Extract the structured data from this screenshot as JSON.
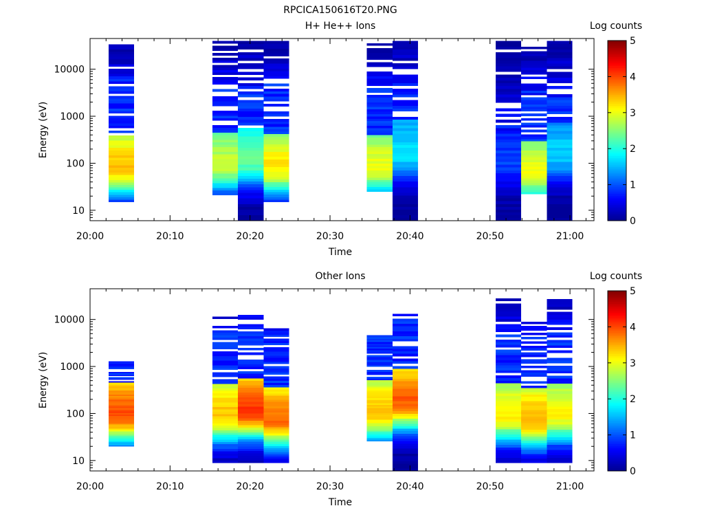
{
  "figure_title": "RPCICA150616T20.PNG",
  "colors": {
    "colormap": [
      "#00008f",
      "#0000ff",
      "#00ffff",
      "#ffff00",
      "#ff0000",
      "#800000"
    ]
  },
  "chart_data": [
    {
      "type": "heatmap",
      "title": "H+ He++ Ions",
      "xlabel": "Time",
      "ylabel": "Energy (eV)",
      "colorbar_label": "Log counts",
      "colorbar_ticks": [
        "0",
        "1",
        "2",
        "3",
        "4",
        "5"
      ],
      "colorbar_range": [
        0,
        5
      ],
      "x_range_min": [
        0,
        63
      ],
      "x_ticks": [
        "20:00",
        "20:10",
        "20:20",
        "20:30",
        "20:40",
        "20:50",
        "21:00"
      ],
      "x_tick_min": [
        0,
        10,
        20,
        30,
        40,
        50,
        60
      ],
      "y_scale": "log",
      "y_range_eV": [
        6,
        45000
      ],
      "y_ticks": [
        "10",
        "100",
        "1000",
        "10000"
      ],
      "y_tick_values": [
        10,
        100,
        1000,
        10000
      ],
      "columns": [
        {
          "t0": 2.3,
          "t1": 5.5,
          "e_min": 15,
          "e_max": 34000,
          "peak_e": 75,
          "peak": 3.4
        },
        {
          "t0": 15.3,
          "t1": 18.5,
          "e_min": 21,
          "e_max": 40000,
          "peak_e": 90,
          "peak": 2.8
        },
        {
          "t0": 18.5,
          "t1": 21.7,
          "e_min": 6,
          "e_max": 40000,
          "peak_e": 110,
          "peak": 2.3
        },
        {
          "t0": 21.7,
          "t1": 24.9,
          "e_min": 15,
          "e_max": 40000,
          "peak_e": 80,
          "peak": 3.2
        },
        {
          "t0": 34.6,
          "t1": 37.8,
          "e_min": 25,
          "e_max": 40000,
          "peak_e": 80,
          "peak": 3.0
        },
        {
          "t0": 37.8,
          "t1": 41.0,
          "e_min": 6,
          "e_max": 40000,
          "peak_e": 160,
          "peak": 1.7
        },
        {
          "t0": 50.7,
          "t1": 53.9,
          "e_min": 6,
          "e_max": 40000,
          "peak_e": 100,
          "peak": 0.9
        },
        {
          "t0": 53.9,
          "t1": 57.1,
          "e_min": 22,
          "e_max": 30000,
          "peak_e": 60,
          "peak": 3.0
        },
        {
          "t0": 57.1,
          "t1": 60.3,
          "e_min": 6,
          "e_max": 40000,
          "peak_e": 150,
          "peak": 1.6
        }
      ]
    },
    {
      "type": "heatmap",
      "title": "Other Ions",
      "xlabel": "Time",
      "ylabel": "Energy (eV)",
      "colorbar_label": "Log counts",
      "colorbar_ticks": [
        "0",
        "1",
        "2",
        "3",
        "4",
        "5"
      ],
      "colorbar_range": [
        0,
        5
      ],
      "x_range_min": [
        0,
        63
      ],
      "x_ticks": [
        "20:00",
        "20:10",
        "20:20",
        "20:30",
        "20:40",
        "20:50",
        "21:00"
      ],
      "x_tick_min": [
        0,
        10,
        20,
        30,
        40,
        50,
        60
      ],
      "y_scale": "log",
      "y_range_eV": [
        6,
        45000
      ],
      "y_ticks": [
        "10",
        "100",
        "1000",
        "10000"
      ],
      "y_tick_values": [
        10,
        100,
        1000,
        10000
      ],
      "columns": [
        {
          "t0": 2.3,
          "t1": 5.5,
          "e_min": 20,
          "e_max": 1300,
          "peak_e": 90,
          "peak": 4.0
        },
        {
          "t0": 15.3,
          "t1": 18.5,
          "e_min": 9,
          "e_max": 13000,
          "peak_e": 90,
          "peak": 3.4
        },
        {
          "t0": 18.5,
          "t1": 21.7,
          "e_min": 9,
          "e_max": 14000,
          "peak_e": 110,
          "peak": 4.1
        },
        {
          "t0": 21.7,
          "t1": 24.9,
          "e_min": 9,
          "e_max": 6500,
          "peak_e": 70,
          "peak": 3.8
        },
        {
          "t0": 34.6,
          "t1": 37.8,
          "e_min": 26,
          "e_max": 4600,
          "peak_e": 100,
          "peak": 3.4
        },
        {
          "t0": 37.8,
          "t1": 41.0,
          "e_min": 6,
          "e_max": 15000,
          "peak_e": 170,
          "peak": 3.9
        },
        {
          "t0": 50.7,
          "t1": 53.9,
          "e_min": 9,
          "e_max": 28000,
          "peak_e": 90,
          "peak": 3.2
        },
        {
          "t0": 53.9,
          "t1": 57.1,
          "e_min": 9,
          "e_max": 9000,
          "peak_e": 70,
          "peak": 3.5
        },
        {
          "t0": 57.1,
          "t1": 60.3,
          "e_min": 9,
          "e_max": 27000,
          "peak_e": 90,
          "peak": 3.1
        }
      ]
    }
  ]
}
